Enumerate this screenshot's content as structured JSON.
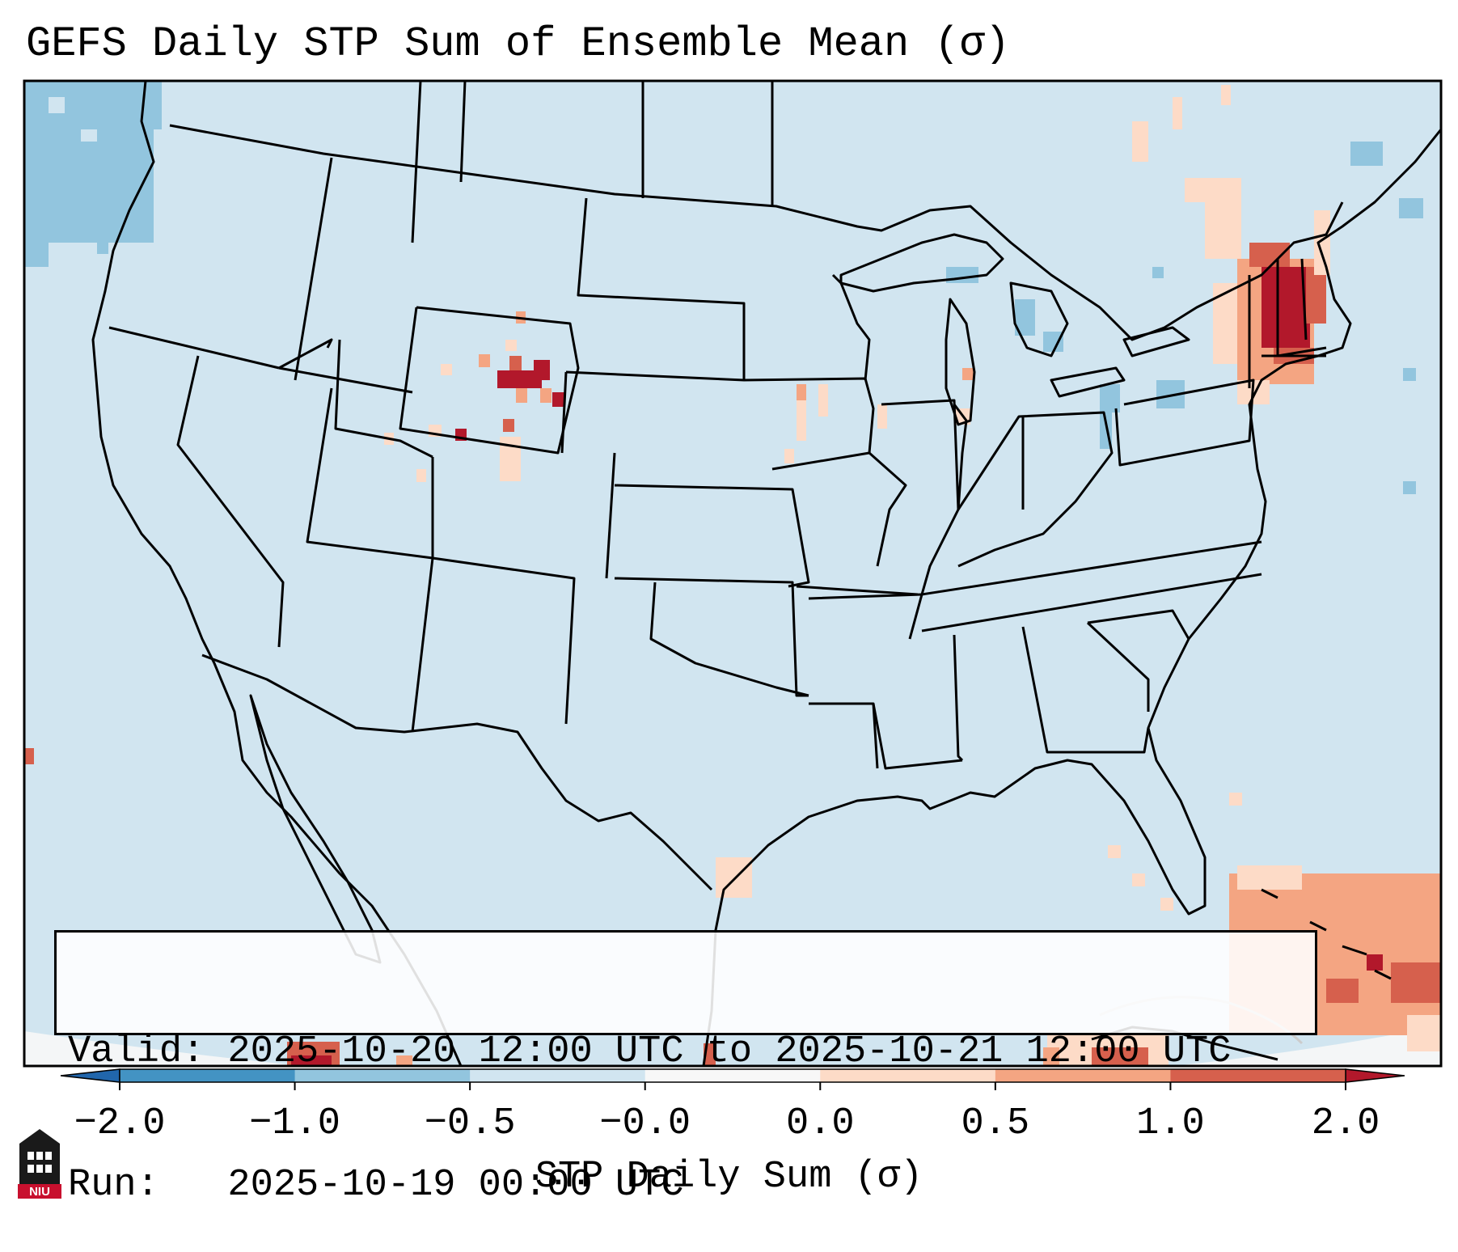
{
  "title": "GEFS Daily STP Sum of Ensemble Mean (σ)",
  "info": {
    "valid_line": "Valid: 2025-10-20 12:00 UTC to 2025-10-21 12:00 UTC",
    "run_line": "Run:   2025-10-19 00:00 UTC"
  },
  "colorbar": {
    "label": "STP Daily Sum (σ)",
    "ticks": [
      "−2.0",
      "−1.0",
      "−0.5",
      "−0.0",
      "0.0",
      "0.5",
      "1.0",
      "2.0"
    ],
    "bins": [
      {
        "from": "−2.0",
        "to": "−1.0",
        "color": "#4393c3"
      },
      {
        "from": "−1.0",
        "to": "−0.5",
        "color": "#92c5de"
      },
      {
        "from": "−0.5",
        "to": "−0.0",
        "color": "#d1e5f0"
      },
      {
        "from": "−0.0",
        "to": "0.0",
        "color": "#f7f7f7"
      },
      {
        "from": "0.0",
        "to": "0.5",
        "color": "#fddbc7"
      },
      {
        "from": "0.5",
        "to": "1.0",
        "color": "#f4a582"
      },
      {
        "from": "1.0",
        "to": "2.0",
        "color": "#d6604d"
      }
    ],
    "under_color": "#2166ac",
    "over_color": "#b2182b",
    "extend": "both"
  },
  "map": {
    "background_color": "#d1e5f0",
    "border_color": "#000000"
  },
  "logo": {
    "text": "NIU",
    "color": "#c8102e"
  }
}
